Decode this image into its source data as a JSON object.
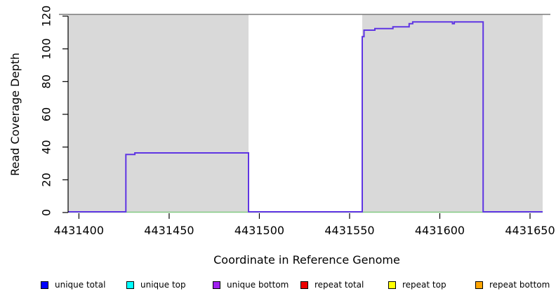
{
  "chart_data": {
    "type": "line",
    "subtype": "step-coverage",
    "title": "",
    "xlabel": "Coordinate in Reference Genome",
    "ylabel": "Read Coverage Depth",
    "xlim": [
      4431394,
      4431657
    ],
    "ylim": [
      0,
      120
    ],
    "x_ticks": [
      4431400,
      4431450,
      4431500,
      4431550,
      4431600,
      4431650
    ],
    "y_ticks": [
      0,
      20,
      40,
      60,
      80,
      100,
      120
    ],
    "grid": false,
    "background": {
      "masked_fill": "#D9D9D9",
      "masked_regions": [
        [
          4431394,
          4431494
        ],
        [
          4431557,
          4431657
        ]
      ],
      "gap_region": {
        "start": 4431494,
        "end": 4431557,
        "fill": "#FFFFFF"
      },
      "top_border_color": "#7A7A7A"
    },
    "series": [
      {
        "name": "zero baseline",
        "color": "#82C982",
        "type": "hline",
        "value": 0
      },
      {
        "name": "coverage step line",
        "color": "#5F35E3",
        "type": "step",
        "points": [
          [
            4431394,
            0
          ],
          [
            4431426,
            0
          ],
          [
            4431426,
            35
          ],
          [
            4431431,
            35
          ],
          [
            4431431,
            36
          ],
          [
            4431494,
            36
          ],
          [
            4431494,
            0
          ],
          [
            4431557,
            0
          ],
          [
            4431557,
            107
          ],
          [
            4431558,
            107
          ],
          [
            4431558,
            111
          ],
          [
            4431564,
            111
          ],
          [
            4431564,
            112
          ],
          [
            4431574,
            112
          ],
          [
            4431574,
            113
          ],
          [
            4431583,
            113
          ],
          [
            4431583,
            115
          ],
          [
            4431585,
            115
          ],
          [
            4431585,
            116
          ],
          [
            4431607,
            116
          ],
          [
            4431607,
            115
          ],
          [
            4431608,
            115
          ],
          [
            4431608,
            116
          ],
          [
            4431624,
            116
          ],
          [
            4431624,
            0
          ],
          [
            4431657,
            0
          ]
        ]
      }
    ],
    "legend": {
      "position": "bottom",
      "items": [
        {
          "label": "unique total",
          "color": "#0000FF"
        },
        {
          "label": "unique top",
          "color": "#00FFFF"
        },
        {
          "label": "unique bottom",
          "color": "#A020F0"
        },
        {
          "label": "repeat total",
          "color": "#EE0000"
        },
        {
          "label": "repeat top",
          "color": "#FFFF00"
        },
        {
          "label": "repeat bottom",
          "color": "#FFA500"
        }
      ]
    }
  }
}
